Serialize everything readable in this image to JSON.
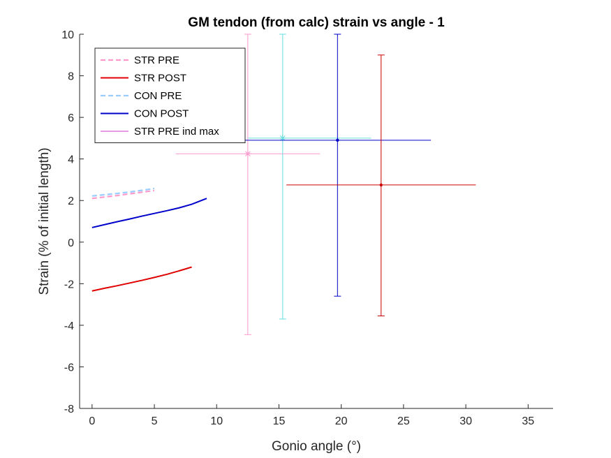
{
  "chart_data": {
    "type": "line",
    "title": "GM tendon (from calc) strain vs angle - 1",
    "xlabel": "Gonio angle (°)",
    "ylabel": "Strain (% of initial length)",
    "xlim": [
      -1,
      37
    ],
    "ylim": [
      -8,
      10
    ],
    "xticks": [
      0,
      5,
      10,
      15,
      20,
      25,
      30,
      35
    ],
    "yticks": [
      -8,
      -6,
      -4,
      -2,
      0,
      2,
      4,
      6,
      8,
      10
    ],
    "grid": false,
    "legend_position": "top-left",
    "series": [
      {
        "name": "STR PRE",
        "color": "#ff99cc",
        "style": "dashed",
        "x": [
          0,
          1,
          2,
          3,
          4,
          5
        ],
        "y": [
          2.1,
          2.17,
          2.24,
          2.32,
          2.4,
          2.48
        ]
      },
      {
        "name": "STR POST",
        "color": "#e00000",
        "style": "solid",
        "x": [
          0,
          1,
          2,
          3,
          4,
          5,
          6,
          7,
          8
        ],
        "y": [
          -2.35,
          -2.22,
          -2.1,
          -1.97,
          -1.84,
          -1.7,
          -1.55,
          -1.38,
          -1.2
        ]
      },
      {
        "name": "CON PRE",
        "color": "#99ccff",
        "style": "dashed",
        "x": [
          0,
          1,
          2,
          3,
          4,
          5
        ],
        "y": [
          2.22,
          2.28,
          2.34,
          2.41,
          2.49,
          2.58
        ]
      },
      {
        "name": "CON POST",
        "color": "#0000cc",
        "style": "solid",
        "x": [
          0,
          1,
          2,
          3,
          4,
          5,
          6,
          7,
          8,
          9.2
        ],
        "y": [
          0.7,
          0.84,
          0.98,
          1.11,
          1.25,
          1.38,
          1.51,
          1.65,
          1.82,
          2.1
        ]
      },
      {
        "name": "STR PRE ind max",
        "color": "#cc33cc",
        "style": "errorbar",
        "marker": "star",
        "x": [
          12.5
        ],
        "y": [
          4.25
        ],
        "xneg": 5.8,
        "xpos": 5.8,
        "yneg": 8.7,
        "ypos": 5.75
      }
    ],
    "errorbars": [
      {
        "color": "#ff99cc",
        "x": 12.5,
        "y": 4.25,
        "xneg": 5.8,
        "xpos": 5.8,
        "yneg": 8.7,
        "ypos": 5.75,
        "marker": "star"
      },
      {
        "color": "#66dddd",
        "x": 15.3,
        "y": 5.0,
        "xneg": 2.8,
        "xpos": 7.1,
        "yneg": 8.7,
        "ypos": 5.0,
        "marker": "star"
      },
      {
        "color": "#0000cc",
        "x": 19.7,
        "y": 4.9,
        "xneg": 7.5,
        "xpos": 7.5,
        "yneg": 7.5,
        "ypos": 5.1,
        "marker": "dot"
      },
      {
        "color": "#cc0000",
        "x": 23.2,
        "y": 2.75,
        "xneg": 7.6,
        "xpos": 7.6,
        "yneg": 6.3,
        "ypos": 6.25,
        "marker": "dot"
      }
    ]
  }
}
